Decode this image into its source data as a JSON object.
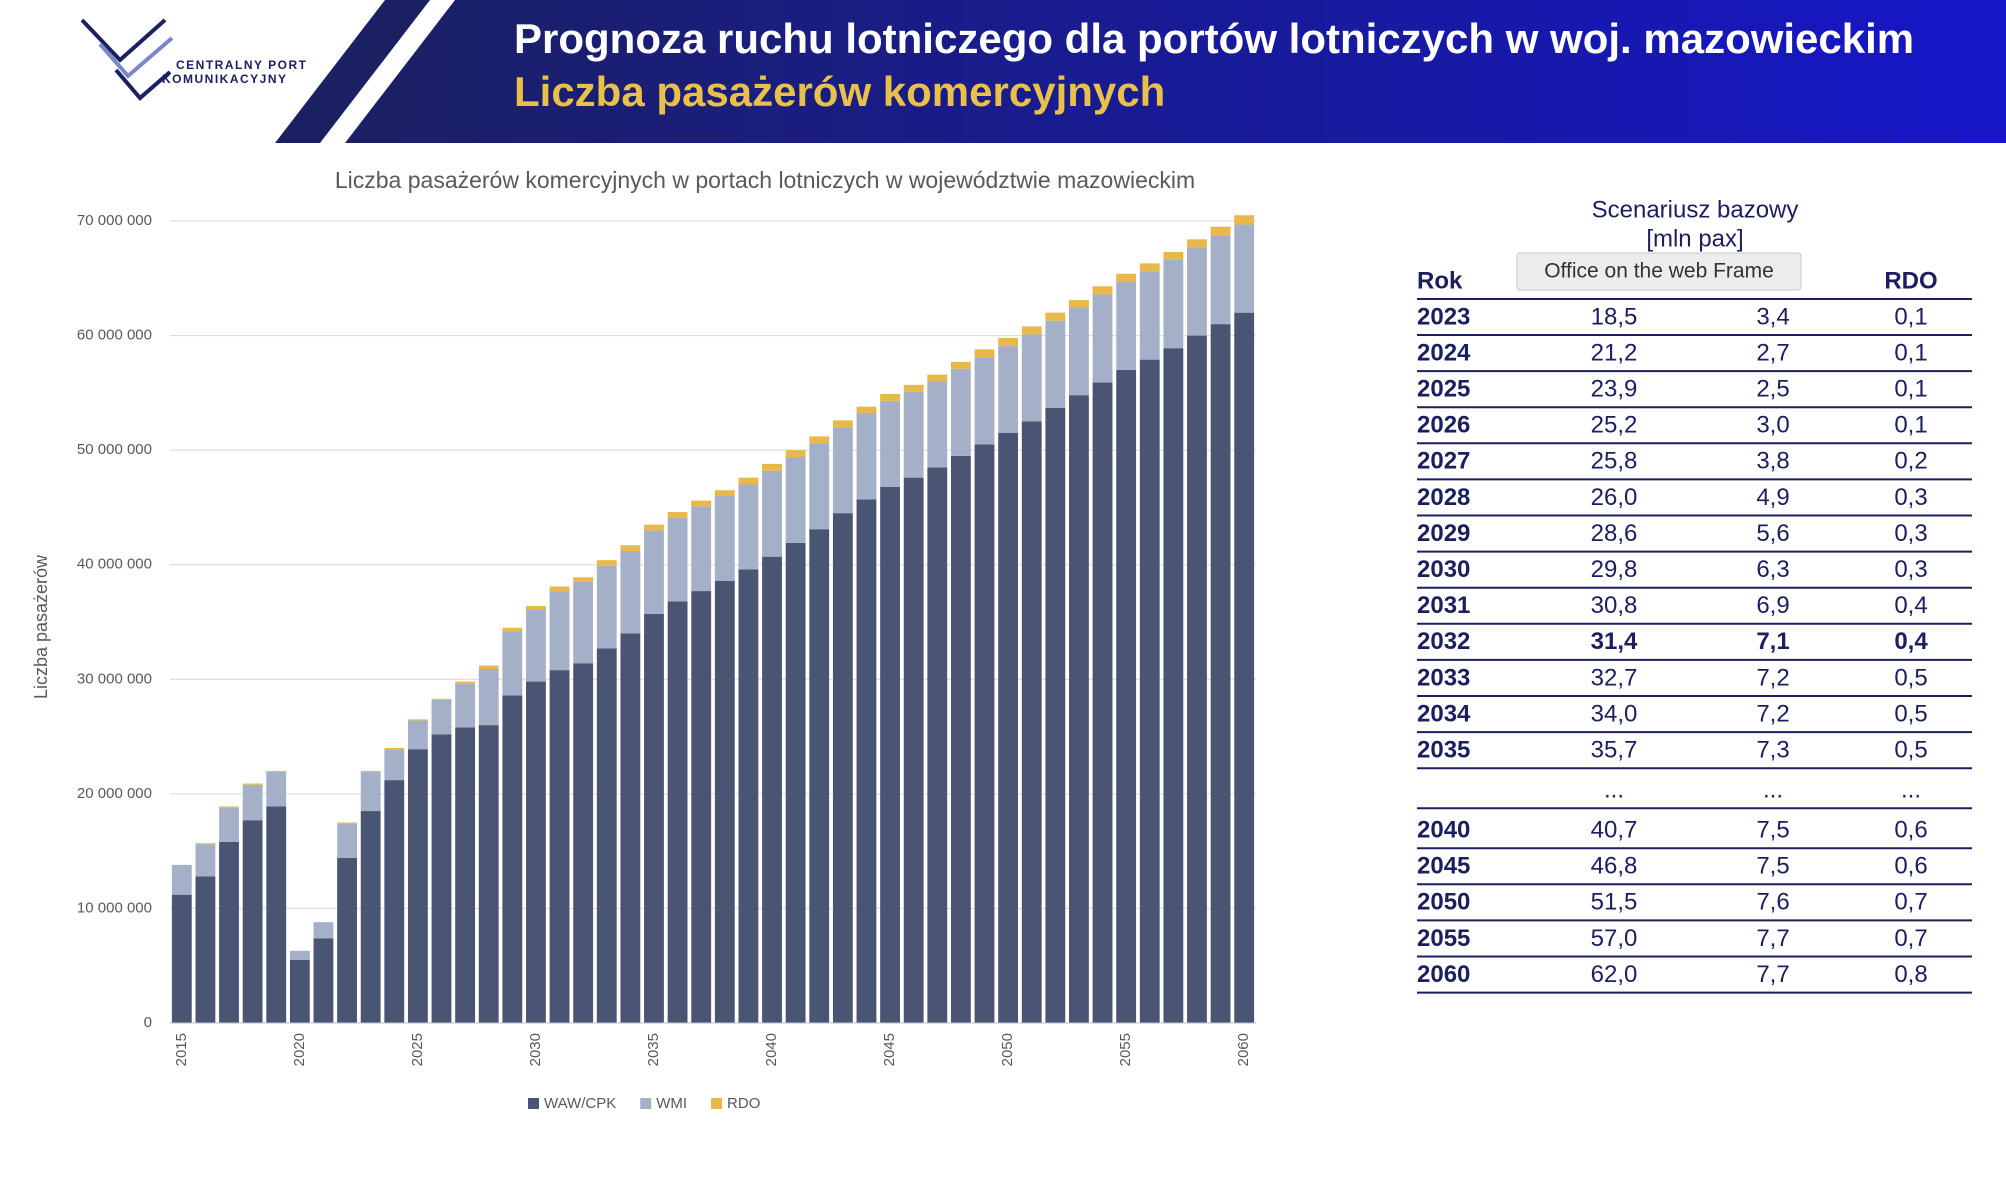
{
  "header": {
    "title": "Prognoza ruchu lotniczego dla portów lotniczych w woj. mazowieckim",
    "subtitle": "Liczba pasażerów komercyjnych",
    "logo_line1": "CENTRALNY PORT",
    "logo_line2": "KOMUNIKACYJNY"
  },
  "chart_data": {
    "type": "stacked_bar",
    "title": "Liczba pasażerów komercyjnych w portach lotniczych w województwie mazowieckim",
    "y_label": "Liczba pasażerów",
    "categories": [
      "2015",
      null,
      null,
      null,
      null,
      "2020",
      null,
      null,
      null,
      null,
      "2025",
      null,
      null,
      null,
      null,
      "2030",
      null,
      null,
      null,
      null,
      "2035",
      null,
      null,
      null,
      null,
      "2040",
      null,
      null,
      null,
      null,
      "2045",
      null,
      null,
      null,
      null,
      "2050",
      null,
      null,
      null,
      null,
      "2055",
      null,
      null,
      null,
      null,
      "2060"
    ],
    "series": [
      {
        "name": "WAW/CPK",
        "color": "#4a5573",
        "values": [
          11200000,
          12800000,
          15800000,
          17700000,
          18900000,
          5500000,
          7400000,
          14400000,
          18500000,
          21200000,
          23900000,
          25200000,
          25800000,
          26000000,
          28600000,
          29800000,
          30800000,
          31400000,
          32700000,
          34000000,
          35700000,
          36800000,
          37700000,
          38600000,
          39600000,
          40700000,
          41900000,
          43100000,
          44500000,
          45700000,
          46800000,
          47600000,
          48500000,
          49500000,
          50500000,
          51500000,
          52500000,
          53700000,
          54800000,
          55900000,
          57000000,
          57900000,
          58900000,
          60000000,
          61000000,
          62000000
        ]
      },
      {
        "name": "WMI",
        "color": "#a3b0c8",
        "values": [
          2600000,
          2800000,
          3000000,
          3100000,
          3000000,
          800000,
          1400000,
          3000000,
          3400000,
          2700000,
          2500000,
          3000000,
          3800000,
          4900000,
          5600000,
          6300000,
          6900000,
          7100000,
          7200000,
          7200000,
          7300000,
          7300000,
          7400000,
          7400000,
          7400000,
          7500000,
          7500000,
          7500000,
          7500000,
          7500000,
          7500000,
          7500000,
          7500000,
          7600000,
          7600000,
          7600000,
          7600000,
          7600000,
          7600000,
          7700000,
          7700000,
          7700000,
          7700000,
          7700000,
          7700000,
          7700000
        ]
      },
      {
        "name": "RDO",
        "color": "#e8b84a",
        "values": [
          0,
          100000,
          100000,
          100000,
          100000,
          0,
          0,
          100000,
          100000,
          100000,
          100000,
          100000,
          200000,
          300000,
          300000,
          300000,
          400000,
          400000,
          500000,
          500000,
          500000,
          500000,
          500000,
          500000,
          600000,
          600000,
          600000,
          600000,
          600000,
          600000,
          600000,
          600000,
          600000,
          600000,
          700000,
          700000,
          700000,
          700000,
          700000,
          700000,
          700000,
          700000,
          700000,
          700000,
          800000,
          800000
        ]
      }
    ],
    "ylim": [
      0,
      70000000
    ],
    "yticks": [
      0,
      {
        "value": 10000000,
        "label": "10 000 000"
      },
      {
        "value": 20000000,
        "label": "20 000 000"
      },
      {
        "value": 30000000,
        "label": "30 000 000"
      },
      {
        "value": 40000000,
        "label": "40 000 000"
      },
      {
        "value": 50000000,
        "label": "50 000 000"
      },
      {
        "value": 60000000,
        "label": "60 000 000"
      },
      {
        "value": 70000000,
        "label": "70 000 000"
      }
    ],
    "grid": true,
    "legend": "bottom"
  },
  "table": {
    "title": "Scenariusz bazowy",
    "unit": "[mln pax]",
    "col_year": "Rok",
    "col_rdo": "RDO",
    "rows": [
      [
        "2023",
        "18,5",
        "3,4",
        "0,1"
      ],
      [
        "2024",
        "21,2",
        "2,7",
        "0,1"
      ],
      [
        "2025",
        "23,9",
        "2,5",
        "0,1"
      ],
      [
        "2026",
        "25,2",
        "3,0",
        "0,1"
      ],
      [
        "2027",
        "25,8",
        "3,8",
        "0,2"
      ],
      [
        "2028",
        "26,0",
        "4,9",
        "0,3"
      ],
      [
        "2029",
        "28,6",
        "5,6",
        "0,3"
      ],
      [
        "2030",
        "29,8",
        "6,3",
        "0,3"
      ],
      [
        "2031",
        "30,8",
        "6,9",
        "0,4"
      ],
      [
        "2032",
        "31,4",
        "7,1",
        "0,4"
      ],
      [
        "2033",
        "32,7",
        "7,2",
        "0,5"
      ],
      [
        "2034",
        "34,0",
        "7,2",
        "0,5"
      ],
      [
        "2035",
        "35,7",
        "7,3",
        "0,5"
      ],
      [
        null,
        "...",
        "...",
        "..."
      ],
      [
        "2040",
        "40,7",
        "7,5",
        "0,6"
      ],
      [
        "2045",
        "46,8",
        "7,5",
        "0,6"
      ],
      [
        "2050",
        "51,5",
        "7,6",
        "0,7"
      ],
      [
        "2055",
        "57,0",
        "7,7",
        "0,7"
      ],
      [
        "2060",
        "62,0",
        "7,7",
        "0,8"
      ]
    ]
  },
  "tooltip": "Office on the web Frame"
}
